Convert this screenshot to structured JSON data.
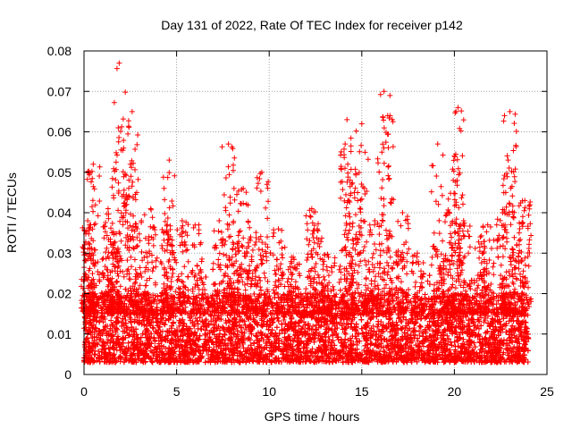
{
  "chart_data": {
    "type": "scatter",
    "title": "Day 131 of 2022, Rate Of TEC Index for receiver p142",
    "xlabel": "GPS time / hours",
    "ylabel": "ROTI / TECUs",
    "xlim": [
      0,
      25
    ],
    "ylim": [
      0,
      0.08
    ],
    "x_ticks": [
      0,
      5,
      10,
      15,
      20,
      25
    ],
    "x_tick_labels": [
      "0",
      "5",
      "10",
      "15",
      "20",
      "25"
    ],
    "y_ticks": [
      0,
      0.01,
      0.02,
      0.03,
      0.04,
      0.05,
      0.06,
      0.07,
      0.08
    ],
    "y_tick_labels": [
      "0",
      "0.01",
      "0.02",
      "0.03",
      "0.04",
      "0.05",
      "0.06",
      "0.07",
      "0.08"
    ],
    "grid": true,
    "marker": "+",
    "series": [
      {
        "name": "ROTI",
        "color": "#ff0000",
        "x_range": [
          0,
          24
        ],
        "typical_range": [
          0.003,
          0.02
        ],
        "peaks": [
          {
            "x": 0.2,
            "y": 0.038
          },
          {
            "x": 0.5,
            "y": 0.052
          },
          {
            "x": 1.3,
            "y": 0.041
          },
          {
            "x": 1.9,
            "y": 0.077
          },
          {
            "x": 1.85,
            "y": 0.061
          },
          {
            "x": 2.6,
            "y": 0.065
          },
          {
            "x": 2.5,
            "y": 0.052
          },
          {
            "x": 3.6,
            "y": 0.041
          },
          {
            "x": 4.6,
            "y": 0.053
          },
          {
            "x": 5.3,
            "y": 0.038
          },
          {
            "x": 6.2,
            "y": 0.037
          },
          {
            "x": 7.8,
            "y": 0.057
          },
          {
            "x": 8.6,
            "y": 0.046
          },
          {
            "x": 9.6,
            "y": 0.05
          },
          {
            "x": 10.5,
            "y": 0.036
          },
          {
            "x": 12.3,
            "y": 0.041
          },
          {
            "x": 14.2,
            "y": 0.063
          },
          {
            "x": 14.1,
            "y": 0.057
          },
          {
            "x": 15.0,
            "y": 0.062
          },
          {
            "x": 16.2,
            "y": 0.07
          },
          {
            "x": 16.4,
            "y": 0.064
          },
          {
            "x": 19.1,
            "y": 0.057
          },
          {
            "x": 20.2,
            "y": 0.066
          },
          {
            "x": 20.0,
            "y": 0.054
          },
          {
            "x": 21.8,
            "y": 0.037
          },
          {
            "x": 23.0,
            "y": 0.065
          },
          {
            "x": 22.9,
            "y": 0.053
          },
          {
            "x": 23.8,
            "y": 0.043
          }
        ],
        "moderate_peaks": [
          {
            "x": 0.3,
            "y": 0.037
          },
          {
            "x": 1.6,
            "y": 0.03
          },
          {
            "x": 3.1,
            "y": 0.038
          },
          {
            "x": 4.5,
            "y": 0.037
          },
          {
            "x": 7.3,
            "y": 0.038
          },
          {
            "x": 8.1,
            "y": 0.046
          },
          {
            "x": 9.0,
            "y": 0.034
          },
          {
            "x": 11.3,
            "y": 0.029
          },
          {
            "x": 12.6,
            "y": 0.036
          },
          {
            "x": 13.2,
            "y": 0.029
          },
          {
            "x": 14.6,
            "y": 0.045
          },
          {
            "x": 15.7,
            "y": 0.038
          },
          {
            "x": 17.2,
            "y": 0.04
          },
          {
            "x": 18.0,
            "y": 0.03
          },
          {
            "x": 19.6,
            "y": 0.04
          },
          {
            "x": 20.5,
            "y": 0.038
          },
          {
            "x": 21.4,
            "y": 0.034
          },
          {
            "x": 22.6,
            "y": 0.04
          },
          {
            "x": 23.5,
            "y": 0.035
          }
        ]
      }
    ]
  }
}
